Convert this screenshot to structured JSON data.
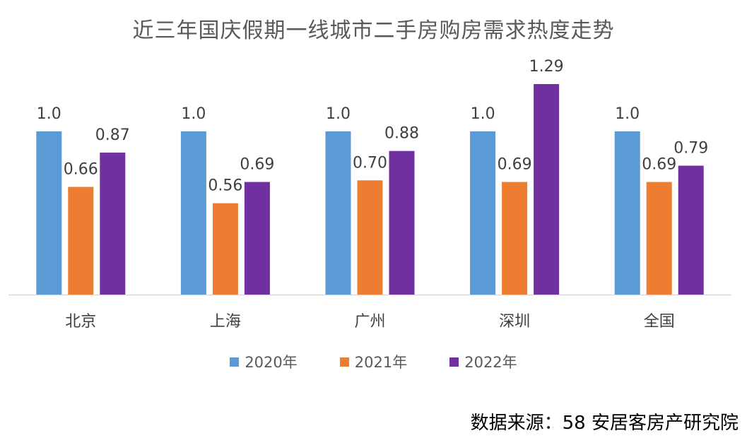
{
  "title": "近三年国庆假期一线城市二手房购房需求热度走势",
  "source": "数据来源：58 安居客房产研究院",
  "chart_data": {
    "type": "bar",
    "title": "近三年国庆假期一线城市二手房购房需求热度走势",
    "categories": [
      "北京",
      "上海",
      "广州",
      "深圳",
      "全国"
    ],
    "series": [
      {
        "name": "2020年",
        "color": "#5B9BD5",
        "values": [
          1.0,
          1.0,
          1.0,
          1.0,
          1.0
        ],
        "labels": [
          "1.0",
          "1.0",
          "1.0",
          "1.0",
          "1.0"
        ]
      },
      {
        "name": "2021年",
        "color": "#ED7D31",
        "values": [
          0.66,
          0.56,
          0.7,
          0.69,
          0.69
        ],
        "labels": [
          "0.66",
          "0.56",
          "0.70",
          "0.69",
          "0.69"
        ]
      },
      {
        "name": "2022年",
        "color": "#7030A0",
        "values": [
          0.87,
          0.69,
          0.88,
          1.29,
          0.79
        ],
        "labels": [
          "0.87",
          "0.69",
          "0.88",
          "1.29",
          "0.79"
        ]
      }
    ],
    "ylim": [
      0,
      1.29
    ],
    "grid": false,
    "legend_position": "bottom"
  }
}
